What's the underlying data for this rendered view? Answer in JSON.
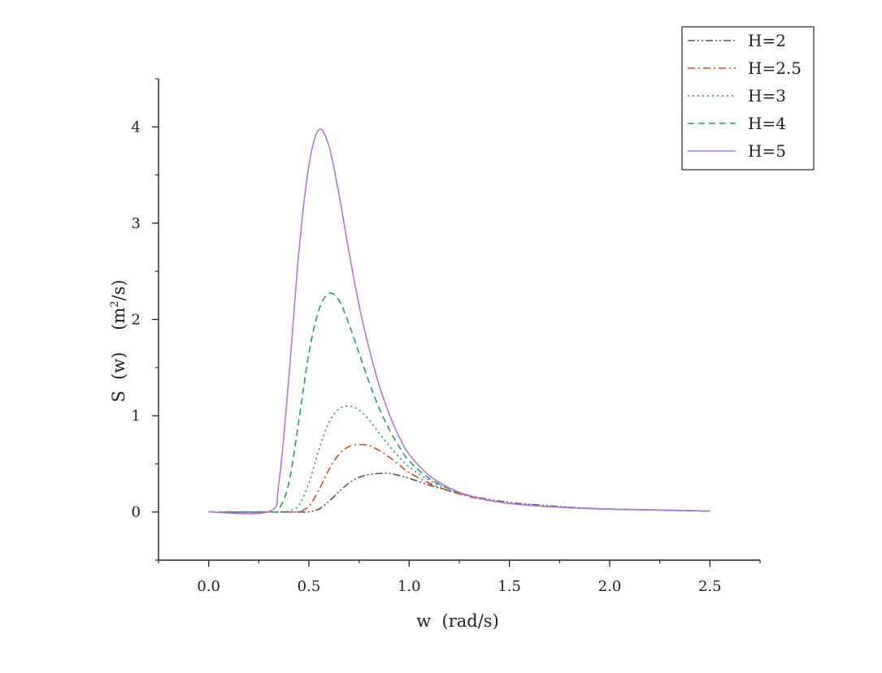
{
  "chart_data": {
    "type": "line",
    "xlabel": "w  (rad/s)",
    "ylabel_main": "S  (w)    (m",
    "ylabel_sup": "2",
    "ylabel_tail": "/s)",
    "xlim": [
      -0.25,
      2.75
    ],
    "ylim": [
      -0.5,
      4.5
    ],
    "xticks": [
      0.0,
      0.5,
      1.0,
      1.5,
      2.0,
      2.5
    ],
    "xtick_labels": [
      "0.0",
      "0.5",
      "1.0",
      "1.5",
      "2.0",
      "2.5"
    ],
    "yticks": [
      0,
      1,
      2,
      3,
      4
    ],
    "ytick_labels": [
      "0",
      "1",
      "2",
      "3",
      "4"
    ],
    "legend_position": "top-right",
    "grid": false,
    "x": [
      0.0,
      0.3,
      0.35,
      0.4,
      0.45,
      0.5,
      0.55,
      0.6,
      0.65,
      0.7,
      0.75,
      0.8,
      0.85,
      0.9,
      0.95,
      1.0,
      1.1,
      1.2,
      1.3,
      1.4,
      1.5,
      1.6,
      1.8,
      2.0,
      2.25,
      2.5
    ],
    "series": [
      {
        "name": "H=2",
        "color": "#555555",
        "dash": "dashdotdot",
        "values": [
          0,
          0,
          0,
          0,
          0,
          0.002,
          0.03,
          0.11,
          0.21,
          0.3,
          0.36,
          0.39,
          0.4,
          0.4,
          0.38,
          0.35,
          0.28,
          0.22,
          0.17,
          0.13,
          0.1,
          0.08,
          0.05,
          0.03,
          0.02,
          0.01
        ]
      },
      {
        "name": "H=2.5",
        "color": "#d04a2e",
        "dash": "dashdot",
        "values": [
          0,
          0,
          0,
          0,
          0.005,
          0.06,
          0.23,
          0.44,
          0.6,
          0.68,
          0.7,
          0.69,
          0.64,
          0.57,
          0.49,
          0.41,
          0.3,
          0.22,
          0.16,
          0.12,
          0.09,
          0.07,
          0.045,
          0.03,
          0.02,
          0.01
        ]
      },
      {
        "name": "H=3",
        "color": "#2f7fc6",
        "dash": "dot",
        "values": [
          0,
          0,
          0,
          0.01,
          0.07,
          0.3,
          0.65,
          0.93,
          1.07,
          1.1,
          1.06,
          0.96,
          0.82,
          0.69,
          0.57,
          0.47,
          0.33,
          0.24,
          0.17,
          0.12,
          0.09,
          0.07,
          0.045,
          0.03,
          0.02,
          0.01
        ]
      },
      {
        "name": "H=4",
        "color": "#2e9a66",
        "dash": "dash",
        "values": [
          0,
          0,
          0.03,
          0.3,
          0.95,
          1.65,
          2.1,
          2.27,
          2.2,
          1.95,
          1.65,
          1.35,
          1.08,
          0.86,
          0.68,
          0.53,
          0.35,
          0.24,
          0.17,
          0.12,
          0.09,
          0.07,
          0.045,
          0.03,
          0.02,
          0.01
        ]
      },
      {
        "name": "H=5",
        "color": "#b278d2",
        "dash": "solid",
        "values": [
          0,
          0.005,
          0.3,
          1.4,
          2.7,
          3.6,
          3.97,
          3.8,
          3.3,
          2.7,
          2.15,
          1.7,
          1.32,
          1.02,
          0.78,
          0.6,
          0.38,
          0.25,
          0.17,
          0.12,
          0.09,
          0.07,
          0.045,
          0.03,
          0.02,
          0.01
        ]
      }
    ]
  }
}
